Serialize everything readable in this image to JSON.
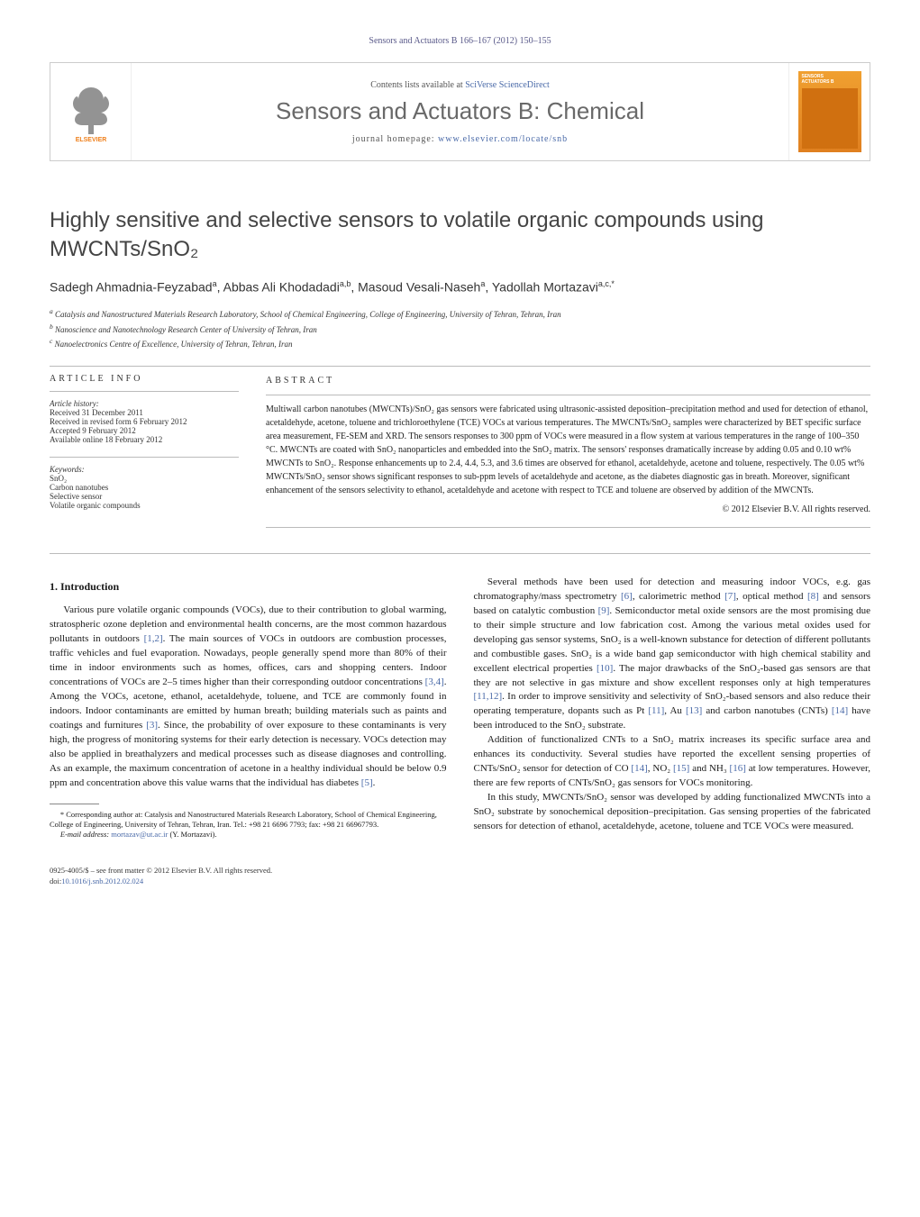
{
  "header": {
    "running": "Sensors and Actuators B 166–167 (2012) 150–155",
    "contents_prefix": "Contents lists available at ",
    "contents_link": "SciVerse ScienceDirect",
    "journal": "Sensors and Actuators B: Chemical",
    "homepage_prefix": "journal homepage: ",
    "homepage_link": "www.elsevier.com/locate/snb",
    "cover_line1": "SENSORS",
    "cover_line2": "ACTUATORS",
    "cover_sub": "B"
  },
  "title": "Highly sensitive and selective sensors to volatile organic compounds using MWCNTs/SnO₂",
  "authors_html": "Sadegh Ahmadnia-Feyzabad<sup>a</sup>, Abbas Ali Khodadadi<sup>a,b</sup>, Masoud Vesali-Naseh<sup>a</sup>, Yadollah Mortazavi<sup>a,c,*</sup>",
  "affiliations": [
    "a Catalysis and Nanostructured Materials Research Laboratory, School of Chemical Engineering, College of Engineering, University of Tehran, Tehran, Iran",
    "b Nanoscience and Nanotechnology Research Center of University of Tehran, Iran",
    "c Nanoelectronics Centre of Excellence, University of Tehran, Tehran, Iran"
  ],
  "article_info": {
    "heading": "article info",
    "history_label": "Article history:",
    "history": [
      "Received 31 December 2011",
      "Received in revised form 6 February 2012",
      "Accepted 9 February 2012",
      "Available online 18 February 2012"
    ],
    "keywords_label": "Keywords:",
    "keywords": [
      "SnO₂",
      "Carbon nanotubes",
      "Selective sensor",
      "Volatile organic compounds"
    ]
  },
  "abstract": {
    "heading": "abstract",
    "text": "Multiwall carbon nanotubes (MWCNTs)/SnO₂ gas sensors were fabricated using ultrasonic-assisted deposition–precipitation method and used for detection of ethanol, acetaldehyde, acetone, toluene and trichloroethylene (TCE) VOCs at various temperatures. The MWCNTs/SnO₂ samples were characterized by BET specific surface area measurement, FE-SEM and XRD. The sensors responses to 300 ppm of VOCs were measured in a flow system at various temperatures in the range of 100–350 °C. MWCNTs are coated with SnO₂ nanoparticles and embedded into the SnO₂ matrix. The sensors' responses dramatically increase by adding 0.05 and 0.10 wt% MWCNTs to SnO₂. Response enhancements up to 2.4, 4.4, 5.3, and 3.6 times are observed for ethanol, acetaldehyde, acetone and toluene, respectively. The 0.05 wt% MWCNTs/SnO₂ sensor shows significant responses to sub-ppm levels of acetaldehyde and acetone, as the diabetes diagnostic gas in breath. Moreover, significant enhancement of the sensors selectivity to ethanol, acetaldehyde and acetone with respect to TCE and toluene are observed by addition of the MWCNTs.",
    "copyright": "© 2012 Elsevier B.V. All rights reserved."
  },
  "section1": {
    "heading": "1. Introduction",
    "p1": "Various pure volatile organic compounds (VOCs), due to their contribution to global warming, stratospheric ozone depletion and environmental health concerns, are the most common hazardous pollutants in outdoors ",
    "r1": "[1,2]",
    "p1b": ". The main sources of VOCs in outdoors are combustion processes, traffic vehicles and fuel evaporation. Nowadays, people generally spend more than 80% of their time in indoor environments such as homes, offices, cars and shopping centers. Indoor concentrations of VOCs are 2–5 times higher than their corresponding outdoor concentrations ",
    "r2": "[3,4]",
    "p1c": ". Among the VOCs, acetone, ethanol, acetaldehyde, toluene, and TCE are commonly found in indoors. Indoor contaminants are emitted by human breath; building materials such as paints and coatings and furnitures ",
    "r3": "[3]",
    "p1d": ". Since, the probability of over exposure to these contaminants is very high, the progress of monitoring systems for their early detection is necessary. VOCs detection may also be applied in breathalyzers and medical processes such as disease diagnoses and controlling. As an example, the maximum concentration of acetone in a healthy individual should be below 0.9 ppm and concentration above this value warns that the individual has diabetes ",
    "r4": "[5]",
    "p1e": ".",
    "p2": "Several methods have been used for detection and measuring indoor VOCs, e.g. gas chromatography/mass spectrometry ",
    "r5": "[6]",
    "p2b": ", calorimetric method ",
    "r6": "[7]",
    "p2c": ", optical method ",
    "r7": "[8]",
    "p2d": " and sensors based on catalytic combustion ",
    "r8": "[9]",
    "p2e": ". Semiconductor metal oxide sensors are the most promising due to their simple structure and low fabrication cost. Among the various metal oxides used for developing gas sensor systems, SnO₂ is a well-known substance for detection of different pollutants and combustible gases. SnO₂ is a wide band gap semiconductor with high chemical stability and excellent electrical properties ",
    "r9": "[10]",
    "p2f": ". The major drawbacks of the SnO₂-based gas sensors are that they are not selective in gas mixture and show excellent responses only at high temperatures ",
    "r10": "[11,12]",
    "p2g": ". In order to improve sensitivity and selectivity of SnO₂-based sensors and also reduce their operating temperature, dopants such as Pt ",
    "r11": "[11]",
    "p2h": ", Au ",
    "r12": "[13]",
    "p2i": " and carbon nanotubes (CNTs) ",
    "r13": "[14]",
    "p2j": " have been introduced to the SnO₂ substrate.",
    "p3": "Addition of functionalized CNTs to a SnO₂ matrix increases its specific surface area and enhances its conductivity. Several studies have reported the excellent sensing properties of CNTs/SnO₂ sensor for detection of CO ",
    "r14": "[14]",
    "p3b": ", NO₂ ",
    "r15": "[15]",
    "p3c": " and NH₃ ",
    "r16": "[16]",
    "p3d": " at low temperatures. However, there are few reports of CNTs/SnO₂ gas sensors for VOCs monitoring.",
    "p4": "In this study, MWCNTs/SnO₂ sensor was developed by adding functionalized MWCNTs into a SnO₂ substrate by sonochemical deposition–precipitation. Gas sensing properties of the fabricated sensors for detection of ethanol, acetaldehyde, acetone, toluene and TCE VOCs were measured."
  },
  "footnote": {
    "corr": "* Corresponding author at: Catalysis and Nanostructured Materials Research Laboratory, School of Chemical Engineering, College of Engineering, University of Tehran, Tehran, Iran. Tel.: +98 21 6696 7793; fax: +98 21 66967793.",
    "email_label": "E-mail address: ",
    "email": "mortazav@ut.ac.ir",
    "email_suffix": " (Y. Mortazavi)."
  },
  "bottom": {
    "line1": "0925-4005/$ – see front matter © 2012 Elsevier B.V. All rights reserved.",
    "doi_label": "doi:",
    "doi": "10.1016/j.snb.2012.02.024"
  },
  "colors": {
    "link": "#4a6aa8",
    "elsevier_orange": "#ef7f1a",
    "elsevier_gray": "#6f6f6f",
    "cover_bg": "#f0a030"
  }
}
